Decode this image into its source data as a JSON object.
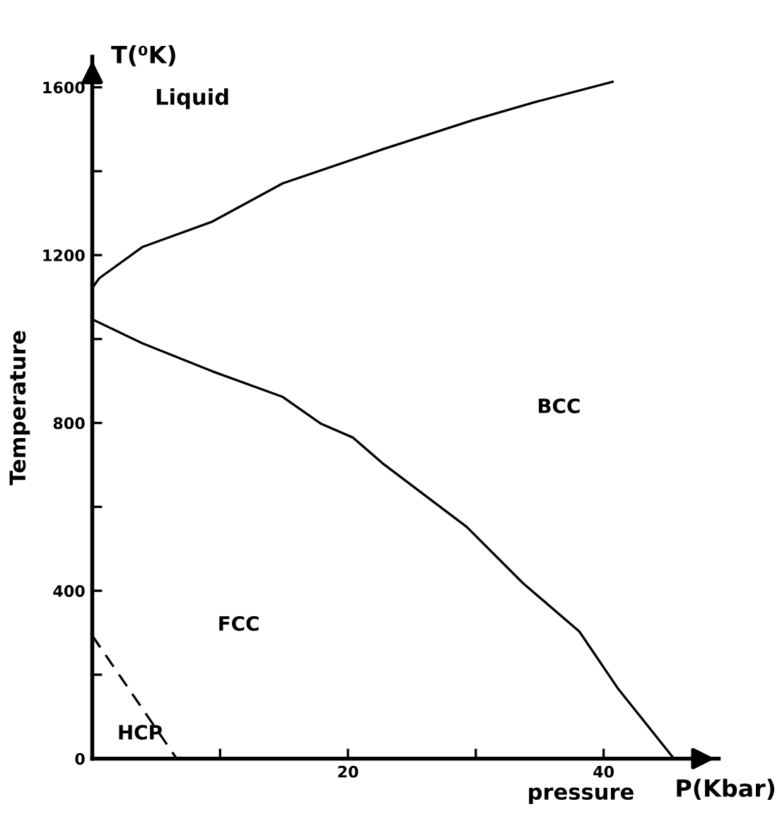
{
  "chart_data": {
    "type": "line",
    "xlabel": "pressure",
    "ylabel": "Temperature",
    "annotations": [
      "T(⁰K)",
      "P(Kbar)",
      "Liquid",
      "BCC",
      "FCC",
      "HCP"
    ],
    "series": [
      {
        "color": "#000000",
        "line_style": "solid",
        "x": [
          0,
          0.55,
          3.9,
          9.4,
          14.9,
          22.7,
          29.8,
          34.8,
          40.7
        ],
        "values": [
          1122,
          1145,
          1219,
          1280,
          1371,
          1452,
          1522,
          1566,
          1613
        ]
      },
      {
        "color": "#000000",
        "line_style": "solid",
        "x": [
          0,
          3.9,
          9.4,
          14.9,
          17.9,
          20.4,
          22.7,
          29.3,
          33.7,
          38.1,
          41.1,
          45.5
        ],
        "values": [
          1047,
          990,
          923,
          862,
          798,
          765,
          704,
          552,
          418,
          303,
          168,
          0
        ]
      },
      {
        "color": "#000000",
        "line_style": "dashed",
        "x": [
          0,
          6.6
        ],
        "values": [
          293,
          0
        ]
      }
    ],
    "xlim": [
      0,
      49
    ],
    "ylim": [
      0,
      1673
    ],
    "xticks": [
      {
        "value": 10,
        "label": null
      },
      20,
      {
        "value": 30,
        "label": null
      },
      40
    ],
    "yticks": [
      0,
      {
        "value": 200,
        "label": null
      },
      400,
      {
        "value": 600,
        "label": null
      },
      800,
      {
        "value": 1000,
        "label": null
      },
      1200,
      {
        "value": 1400,
        "label": null
      },
      1600
    ],
    "grid": false,
    "legend": false,
    "marker": "none"
  }
}
